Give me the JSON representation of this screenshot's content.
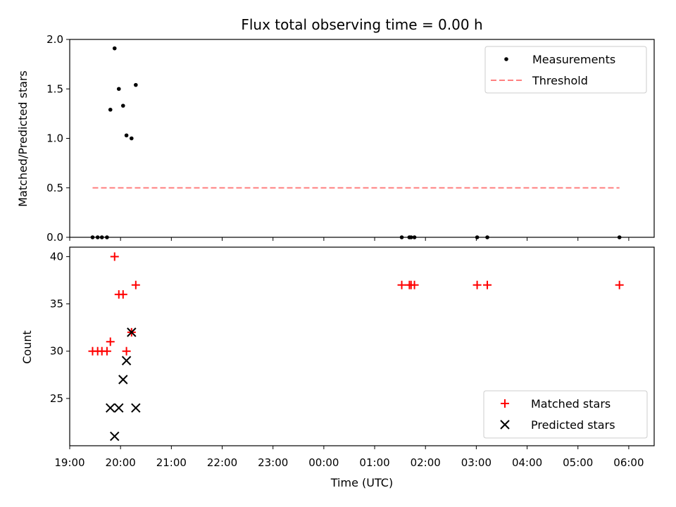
{
  "chart_data": [
    {
      "type": "scatter",
      "title": "Flux total observing time = 0.00 h",
      "xlabel": "",
      "ylabel": "Matched/Predicted stars",
      "xlim": [
        "19:00",
        "06:30"
      ],
      "ylim": [
        0,
        2.0
      ],
      "yticks": [
        "0.0",
        "0.5",
        "1.0",
        "1.5",
        "2.0"
      ],
      "legend": "top-right",
      "grid": false,
      "series": [
        {
          "name": "Measurements",
          "marker": "dot",
          "color": "#000000",
          "points": [
            {
              "x": "19:27",
              "y": 0.0
            },
            {
              "x": "19:33",
              "y": 0.0
            },
            {
              "x": "19:38",
              "y": 0.0
            },
            {
              "x": "19:44",
              "y": 0.0
            },
            {
              "x": "19:48",
              "y": 1.29
            },
            {
              "x": "19:53",
              "y": 1.91
            },
            {
              "x": "19:58",
              "y": 1.5
            },
            {
              "x": "20:03",
              "y": 1.33
            },
            {
              "x": "20:07",
              "y": 1.03
            },
            {
              "x": "20:13",
              "y": 1.0
            },
            {
              "x": "20:18",
              "y": 1.54
            },
            {
              "x": "01:32",
              "y": 0.0
            },
            {
              "x": "01:41",
              "y": 0.0
            },
            {
              "x": "01:43",
              "y": 0.0
            },
            {
              "x": "01:47",
              "y": 0.0
            },
            {
              "x": "03:01",
              "y": 0.0
            },
            {
              "x": "03:13",
              "y": 0.0
            },
            {
              "x": "05:49",
              "y": 0.0
            }
          ]
        },
        {
          "name": "Threshold",
          "marker": "dashed-line",
          "color": "#ff8080",
          "points": [
            {
              "x": "19:27",
              "y": 0.5
            },
            {
              "x": "05:49",
              "y": 0.5
            }
          ]
        }
      ]
    },
    {
      "type": "scatter",
      "title": "",
      "xlabel": "Time (UTC)",
      "ylabel": "Count",
      "xlim": [
        "19:00",
        "06:30"
      ],
      "ylim": [
        20,
        41
      ],
      "yticks": [
        "25",
        "30",
        "35",
        "40"
      ],
      "xticks": [
        "19:00",
        "20:00",
        "21:00",
        "22:00",
        "23:00",
        "00:00",
        "01:00",
        "02:00",
        "03:00",
        "04:00",
        "05:00",
        "06:00"
      ],
      "legend": "bottom-right",
      "grid": false,
      "series": [
        {
          "name": "Matched stars",
          "marker": "plus",
          "color": "#ff0000",
          "points": [
            {
              "x": "19:27",
              "y": 30
            },
            {
              "x": "19:33",
              "y": 30
            },
            {
              "x": "19:38",
              "y": 30
            },
            {
              "x": "19:44",
              "y": 30
            },
            {
              "x": "19:48",
              "y": 31
            },
            {
              "x": "19:53",
              "y": 40
            },
            {
              "x": "19:58",
              "y": 36
            },
            {
              "x": "20:03",
              "y": 36
            },
            {
              "x": "20:07",
              "y": 30
            },
            {
              "x": "20:13",
              "y": 32
            },
            {
              "x": "20:18",
              "y": 37
            },
            {
              "x": "01:32",
              "y": 37
            },
            {
              "x": "01:41",
              "y": 37
            },
            {
              "x": "01:43",
              "y": 37
            },
            {
              "x": "01:47",
              "y": 37
            },
            {
              "x": "03:01",
              "y": 37
            },
            {
              "x": "03:13",
              "y": 37
            },
            {
              "x": "05:49",
              "y": 37
            }
          ]
        },
        {
          "name": "Predicted stars",
          "marker": "x",
          "color": "#000000",
          "points": [
            {
              "x": "19:48",
              "y": 24
            },
            {
              "x": "19:53",
              "y": 21
            },
            {
              "x": "19:58",
              "y": 24
            },
            {
              "x": "20:03",
              "y": 27
            },
            {
              "x": "20:07",
              "y": 29
            },
            {
              "x": "20:13",
              "y": 32
            },
            {
              "x": "20:18",
              "y": 24
            }
          ]
        }
      ]
    }
  ]
}
